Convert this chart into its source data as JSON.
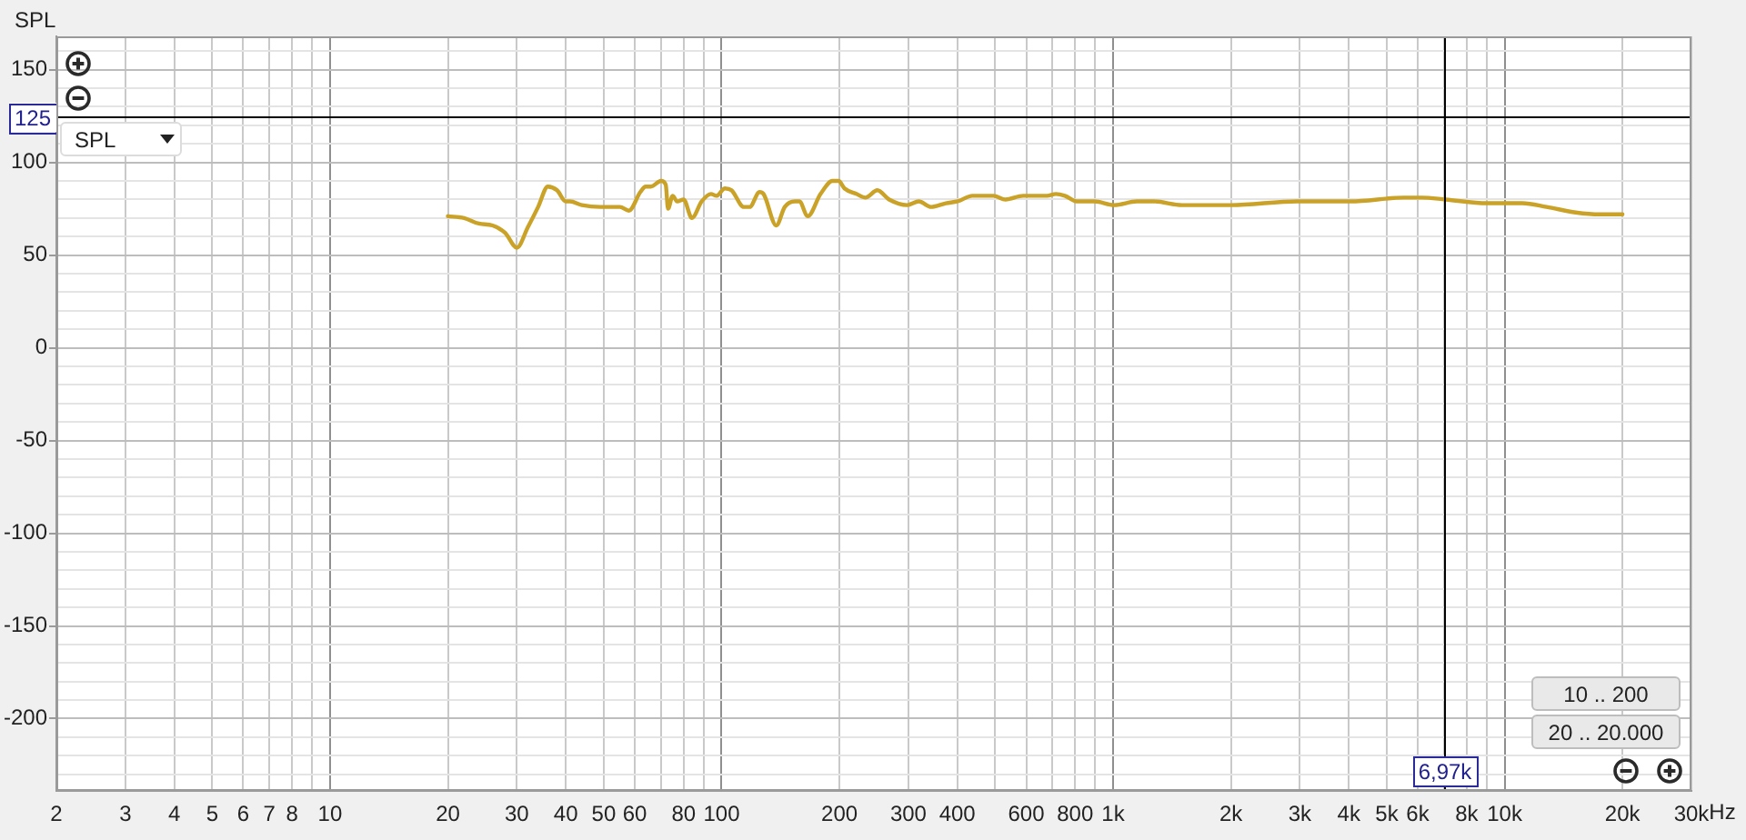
{
  "chart_data": {
    "type": "line",
    "ylabel": "SPL",
    "xlabel": "Hz",
    "x": [
      20,
      22,
      24,
      26,
      28,
      30,
      32,
      34,
      36,
      38,
      40,
      41,
      44,
      49,
      55,
      58,
      62,
      64,
      66,
      70,
      72,
      73,
      75,
      77,
      80,
      84,
      89,
      94,
      97,
      102,
      106,
      114,
      118,
      125,
      128,
      138,
      145,
      154,
      158,
      166,
      179,
      192,
      199,
      206,
      221,
      233,
      250,
      268,
      298,
      319,
      343,
      374,
      401,
      437,
      495,
      531,
      589,
      678,
      714,
      753,
      807,
      897,
      1006,
      1150,
      1270,
      1500,
      2000,
      2950,
      4040,
      5530,
      6140,
      7070,
      9020,
      11100,
      12800,
      15200,
      17500,
      20000
    ],
    "series": [
      {
        "color": "#c9a227",
        "values": [
          71,
          70,
          67,
          66,
          62,
          54,
          65,
          76,
          87,
          85,
          79,
          79,
          77,
          76,
          76,
          74,
          84,
          87,
          87,
          90,
          88,
          75,
          82,
          79,
          80,
          70,
          79,
          83,
          82,
          86,
          85,
          76,
          76,
          84,
          83,
          66,
          76,
          79,
          79,
          71,
          83,
          90,
          90,
          86,
          83,
          81,
          85,
          80,
          77,
          79,
          76,
          78,
          79,
          82,
          82,
          80,
          82,
          82,
          83,
          82,
          79,
          79,
          77,
          79,
          79,
          77,
          77,
          79,
          79,
          81,
          81,
          80,
          78,
          78,
          76,
          73,
          72,
          72
        ]
      }
    ],
    "xlim": [
      2,
      30000
    ],
    "ylim": [
      -239,
      168
    ],
    "xticks": [
      2,
      3,
      4,
      5,
      6,
      7,
      8,
      {
        "value": 9,
        "label": null
      },
      10,
      20,
      30,
      40,
      50,
      60,
      {
        "value": 70,
        "label": null
      },
      80,
      {
        "value": 90,
        "label": null
      },
      100,
      200,
      300,
      400,
      {
        "value": 500,
        "label": null
      },
      600,
      {
        "value": 700,
        "label": null
      },
      800,
      {
        "value": 900,
        "label": null
      },
      {
        "value": 1000,
        "label": "1k"
      },
      {
        "value": 2000,
        "label": "2k"
      },
      {
        "value": 3000,
        "label": "3k"
      },
      {
        "value": 4000,
        "label": "4k"
      },
      {
        "value": 5000,
        "label": "5k"
      },
      {
        "value": 6000,
        "label": "6k"
      },
      {
        "value": 7000,
        "label": null
      },
      {
        "value": 8000,
        "label": "8k"
      },
      {
        "value": 9000,
        "label": null
      },
      {
        "value": 10000,
        "label": "10k"
      },
      {
        "value": 20000,
        "label": "20k"
      },
      {
        "value": 30000,
        "label": "30k"
      }
    ],
    "yticks": [
      {
        "value": 160,
        "label": null
      },
      150,
      {
        "value": 140,
        "label": null
      },
      {
        "value": 130,
        "label": null
      },
      {
        "value": 120,
        "label": null
      },
      {
        "value": 110,
        "label": null
      },
      100,
      {
        "value": 90,
        "label": null
      },
      {
        "value": 80,
        "label": null
      },
      {
        "value": 70,
        "label": null
      },
      {
        "value": 60,
        "label": null
      },
      50,
      {
        "value": 40,
        "label": null
      },
      {
        "value": 30,
        "label": null
      },
      {
        "value": 20,
        "label": null
      },
      {
        "value": 10,
        "label": null
      },
      0,
      {
        "value": -10,
        "label": null
      },
      {
        "value": -20,
        "label": null
      },
      {
        "value": -30,
        "label": null
      },
      {
        "value": -40,
        "label": null
      },
      -50,
      {
        "value": -60,
        "label": null
      },
      {
        "value": -70,
        "label": null
      },
      {
        "value": -80,
        "label": null
      },
      {
        "value": -90,
        "label": null
      },
      -100,
      {
        "value": -110,
        "label": null
      },
      {
        "value": -120,
        "label": null
      },
      {
        "value": -130,
        "label": null
      },
      {
        "value": -140,
        "label": null
      },
      -150,
      {
        "value": -160,
        "label": null
      },
      {
        "value": -170,
        "label": null
      },
      {
        "value": -180,
        "label": null
      },
      {
        "value": -190,
        "label": null
      },
      -200,
      {
        "value": -210,
        "label": null
      },
      {
        "value": -220,
        "label": null
      },
      {
        "value": -230,
        "label": null
      }
    ],
    "log": "x",
    "grid": true,
    "line_style": "solid",
    "ref_lines": [
      {
        "axis": "y",
        "value": 125,
        "label": "125",
        "color": "#000000"
      },
      {
        "axis": "x",
        "value": 6970,
        "label": "6,97k",
        "color": "#000000"
      }
    ],
    "annotations": [
      "SPL",
      "10 .. 200",
      "20 .. 20.000"
    ]
  }
}
